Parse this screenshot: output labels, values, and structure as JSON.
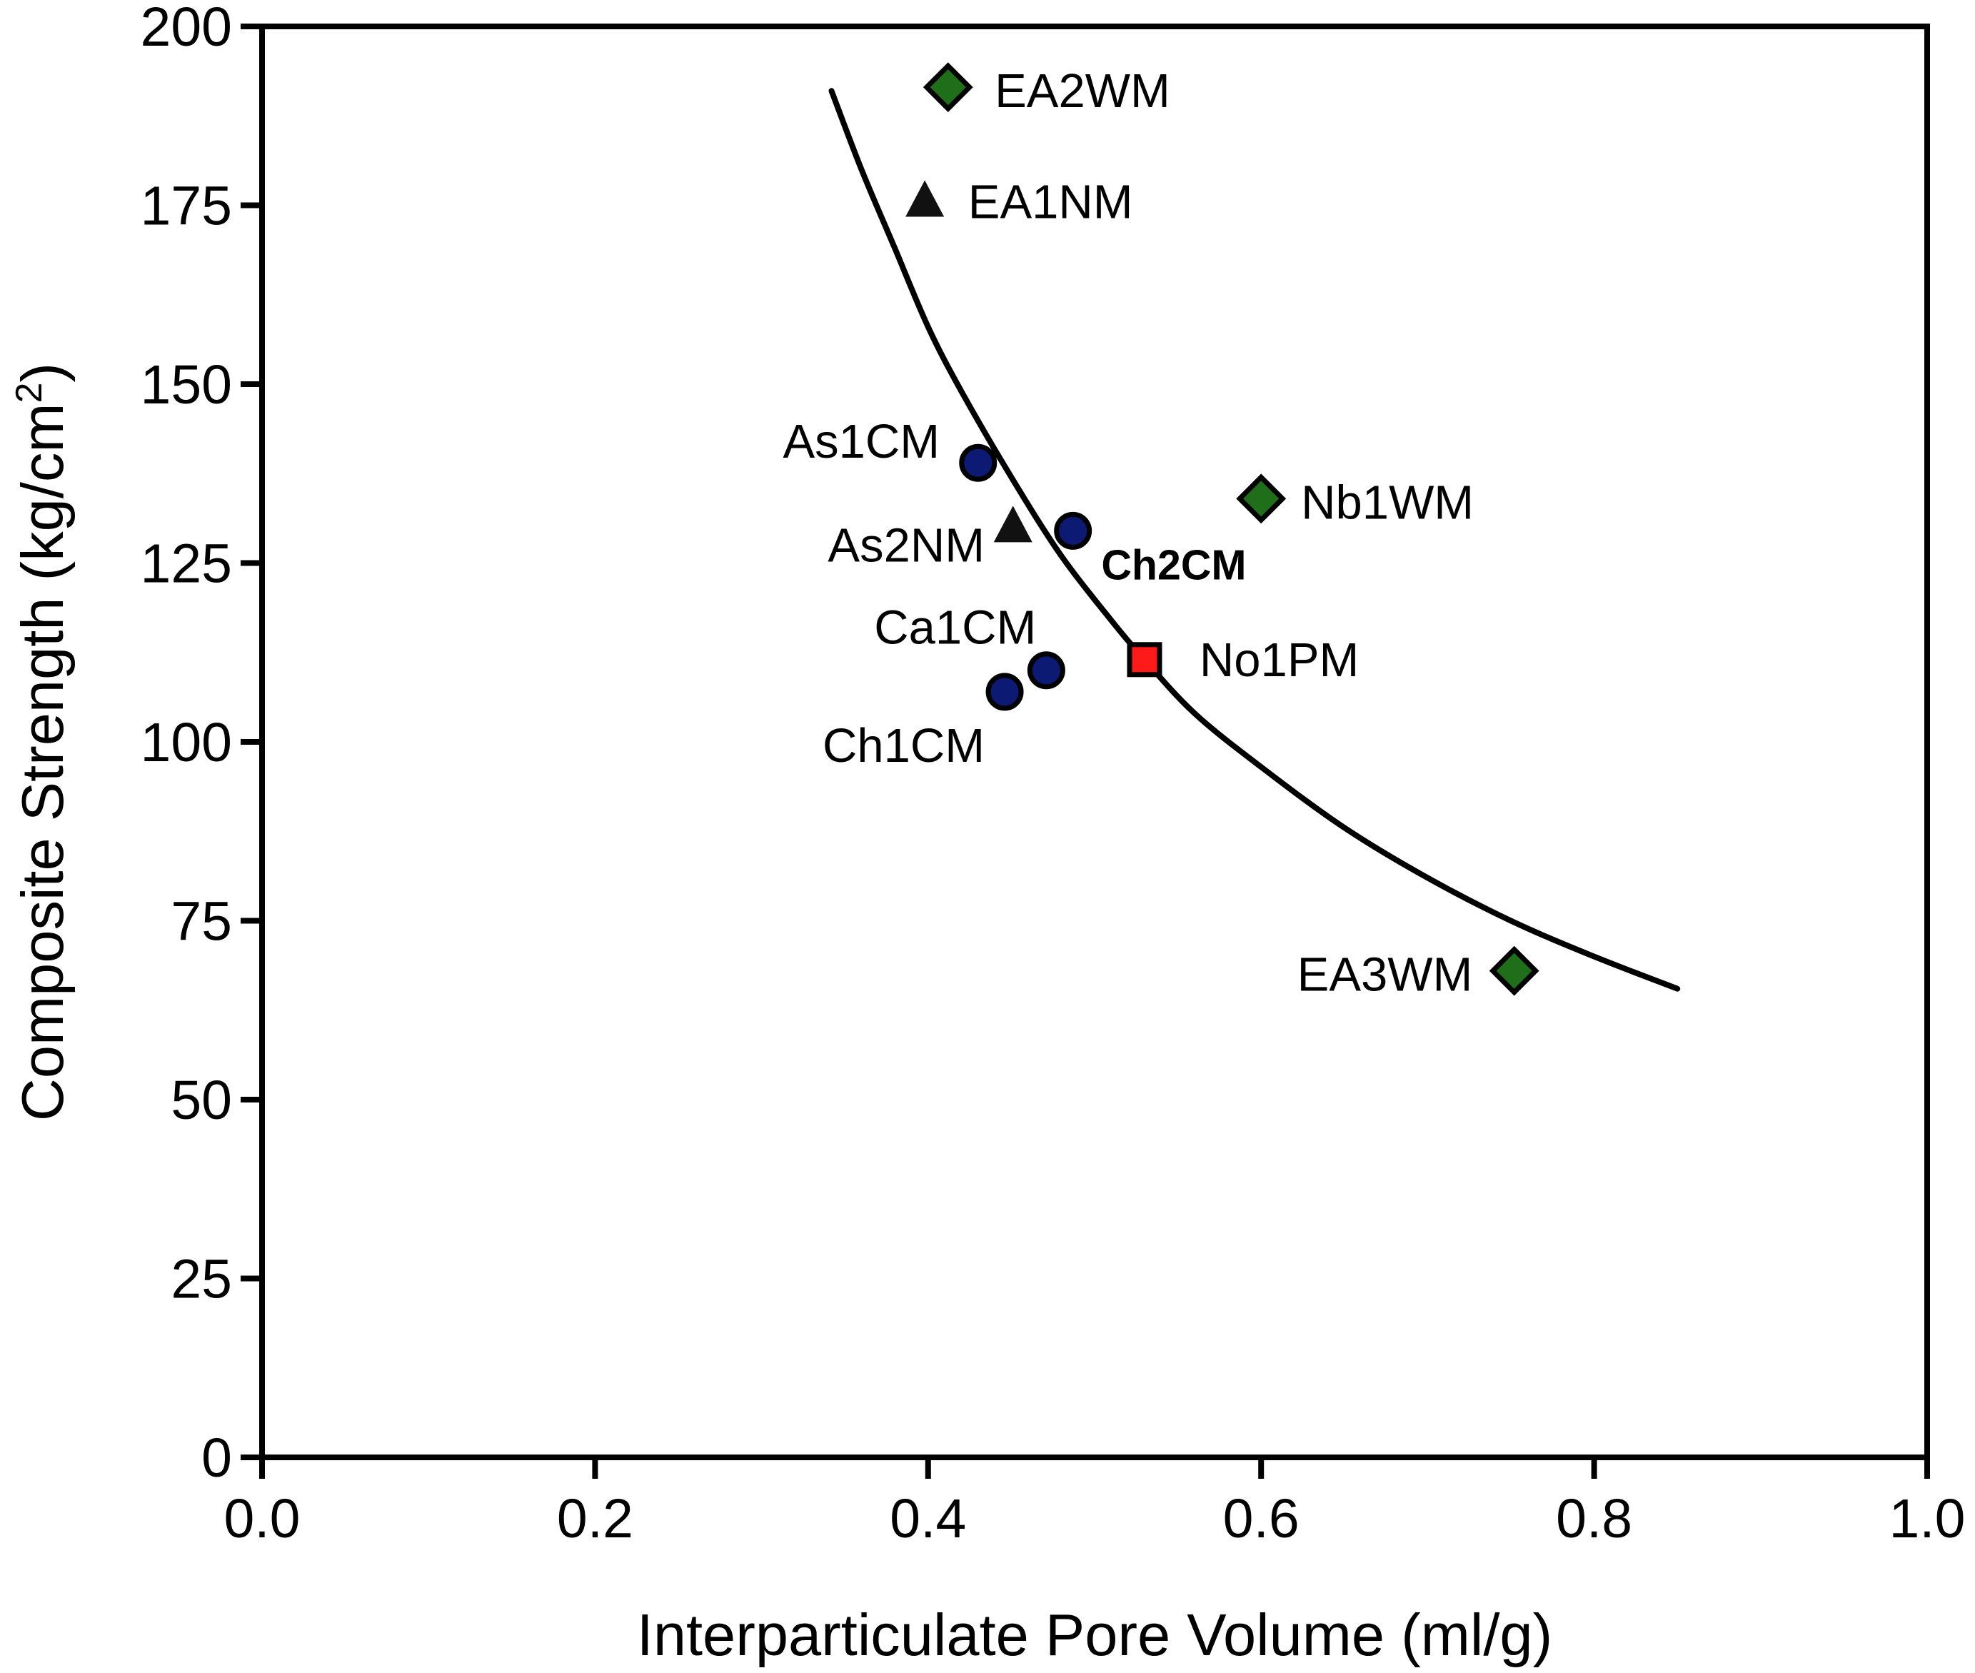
{
  "chart_data": {
    "type": "scatter",
    "title": "",
    "xlabel": "Interparticulate Pore Volume (ml/g)",
    "ylabel": "Composite Strength (kg/cm",
    "ylabel_sup": "2",
    "ylabel_end": ")",
    "xlim": [
      0.0,
      1.0
    ],
    "ylim": [
      0,
      200
    ],
    "grid": false,
    "x_ticks": [
      {
        "value": 0.0,
        "label": "0.0"
      },
      {
        "value": 0.2,
        "label": "0.2"
      },
      {
        "value": 0.4,
        "label": "0.4"
      },
      {
        "value": 0.6,
        "label": "0.6"
      },
      {
        "value": 0.8,
        "label": "0.8"
      },
      {
        "value": 1.0,
        "label": "1.0"
      }
    ],
    "y_ticks": [
      {
        "value": 0,
        "label": "0"
      },
      {
        "value": 25,
        "label": "25"
      },
      {
        "value": 50,
        "label": "50"
      },
      {
        "value": 75,
        "label": "75"
      },
      {
        "value": 100,
        "label": "100"
      },
      {
        "value": 125,
        "label": "125"
      },
      {
        "value": 150,
        "label": "150"
      },
      {
        "value": 175,
        "label": "175"
      },
      {
        "value": 200,
        "label": "200"
      }
    ],
    "colors": {
      "diamond": "#1e6e1a",
      "circle": "#0d1a73",
      "square": "#ff1a1a",
      "triangle": "#111111",
      "curve": "#000000"
    },
    "points": [
      {
        "label": "EA2WM",
        "x": 0.412,
        "y": 191.5,
        "marker": "diamond",
        "label_anchor": "start",
        "label_dx": 0.028,
        "label_dy": -0.5
      },
      {
        "label": "EA1NM",
        "x": 0.398,
        "y": 175.5,
        "marker": "triangle",
        "label_anchor": "start",
        "label_dx": 0.026,
        "label_dy": 0
      },
      {
        "label": "As1CM",
        "x": 0.43,
        "y": 139,
        "marker": "circle",
        "label_anchor": "end",
        "label_dx": -0.023,
        "label_dy": 3
      },
      {
        "label": "As2NM",
        "x": 0.451,
        "y": 130,
        "marker": "triangle",
        "label_anchor": "end",
        "label_dx": -0.017,
        "label_dy": -2.5
      },
      {
        "label": "Ch2CM",
        "x": 0.487,
        "y": 129.5,
        "marker": "circle",
        "label_anchor": "start",
        "label_dx": 0.017,
        "label_dy": -4.5,
        "bold": true
      },
      {
        "label": "Ca1CM",
        "x": 0.471,
        "y": 110,
        "marker": "circle",
        "label_anchor": "end",
        "label_dx": -0.006,
        "label_dy": 6
      },
      {
        "label": "Ch1CM",
        "x": 0.446,
        "y": 107,
        "marker": "circle",
        "label_anchor": "end",
        "label_dx": -0.012,
        "label_dy": -7.5
      },
      {
        "label": "No1PM",
        "x": 0.53,
        "y": 111.5,
        "marker": "square",
        "label_anchor": "start",
        "label_dx": 0.033,
        "label_dy": 0
      },
      {
        "label": "Nb1WM",
        "x": 0.6,
        "y": 134,
        "marker": "diamond",
        "label_anchor": "start",
        "label_dx": 0.024,
        "label_dy": -0.5
      },
      {
        "label": "EA3WM",
        "x": 0.752,
        "y": 68,
        "marker": "diamond",
        "label_anchor": "end",
        "label_dx": -0.025,
        "label_dy": -0.5
      }
    ],
    "fit_curve": {
      "name": "fit",
      "x": [
        0.342,
        0.36,
        0.38,
        0.4,
        0.42,
        0.45,
        0.48,
        0.51,
        0.53,
        0.56,
        0.6,
        0.65,
        0.7,
        0.75,
        0.8,
        0.85
      ],
      "y": [
        191,
        180,
        169,
        158,
        149,
        137,
        126,
        117,
        111.5,
        104,
        96.5,
        88,
        81,
        75,
        70,
        65.5
      ]
    }
  }
}
